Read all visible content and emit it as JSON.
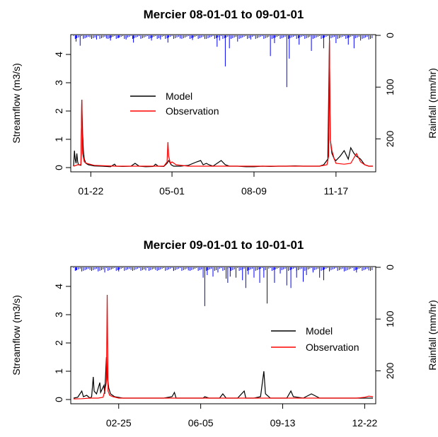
{
  "chart_data": [
    {
      "type": "line",
      "title": "Mercier 08-01-01 to 09-01-01",
      "ylabel": "Streamflow (m3/s)",
      "ylabel_right": "Rainfall (mm/hr)",
      "xlabel": "",
      "ylim": [
        0,
        4.5
      ],
      "ylim_right": [
        0,
        250
      ],
      "y_ticks": [
        0,
        1,
        2,
        3,
        4
      ],
      "y_right_ticks": [
        0,
        100,
        200
      ],
      "x_tick_labels": [
        "01-22",
        "05-01",
        "08-09",
        "11-17"
      ],
      "x_tick_days": [
        21,
        120,
        220,
        320
      ],
      "legend": {
        "position": "center",
        "entries": [
          "Model",
          "Observation"
        ]
      },
      "colors": {
        "model": "#000000",
        "observation": "#ff0000",
        "rainfall": "#0000ff"
      },
      "series": [
        {
          "name": "Model",
          "points": [
            [
              0,
              0.05
            ],
            [
              1,
              0.6
            ],
            [
              2,
              0.3
            ],
            [
              3,
              0.15
            ],
            [
              4,
              0.5
            ],
            [
              5,
              0.2
            ],
            [
              6,
              0.1
            ],
            [
              9,
              0.08
            ],
            [
              10,
              2.4
            ],
            [
              11,
              1.2
            ],
            [
              12,
              0.6
            ],
            [
              13,
              0.3
            ],
            [
              15,
              0.15
            ],
            [
              18,
              0.1
            ],
            [
              25,
              0.06
            ],
            [
              35,
              0.05
            ],
            [
              45,
              0.03
            ],
            [
              50,
              0.12
            ],
            [
              52,
              0.05
            ],
            [
              60,
              0.04
            ],
            [
              70,
              0.05
            ],
            [
              75,
              0.15
            ],
            [
              80,
              0.05
            ],
            [
              88,
              0.03
            ],
            [
              97,
              0.04
            ],
            [
              100,
              0.12
            ],
            [
              103,
              0.05
            ],
            [
              110,
              0.04
            ],
            [
              114,
              0.15
            ],
            [
              116,
              0.25
            ],
            [
              117,
              0.2
            ],
            [
              119,
              0.1
            ],
            [
              122,
              0.05
            ],
            [
              130,
              0.05
            ],
            [
              140,
              0.08
            ],
            [
              150,
              0.2
            ],
            [
              155,
              0.25
            ],
            [
              158,
              0.1
            ],
            [
              162,
              0.15
            ],
            [
              165,
              0.1
            ],
            [
              170,
              0.05
            ],
            [
              180,
              0.25
            ],
            [
              185,
              0.1
            ],
            [
              190,
              0.05
            ],
            [
              200,
              0.05
            ],
            [
              210,
              0.03
            ],
            [
              220,
              0.03
            ],
            [
              230,
              0.05
            ],
            [
              240,
              0.04
            ],
            [
              250,
              0.05
            ],
            [
              260,
              0.05
            ],
            [
              270,
              0.06
            ],
            [
              280,
              0.05
            ],
            [
              300,
              0.05
            ],
            [
              305,
              0.1
            ],
            [
              310,
              0.3
            ],
            [
              312,
              4.5
            ],
            [
              313,
              1.0
            ],
            [
              315,
              0.5
            ],
            [
              318,
              0.3
            ],
            [
              320,
              0.25
            ],
            [
              325,
              0.4
            ],
            [
              330,
              0.6
            ],
            [
              335,
              0.3
            ],
            [
              338,
              0.7
            ],
            [
              342,
              0.5
            ],
            [
              345,
              0.4
            ],
            [
              350,
              0.3
            ],
            [
              355,
              0.1
            ],
            [
              360,
              0.05
            ],
            [
              365,
              0.05
            ]
          ]
        },
        {
          "name": "Observation",
          "points": [
            [
              0,
              0.05
            ],
            [
              5,
              0.1
            ],
            [
              9,
              0.1
            ],
            [
              10,
              2.4
            ],
            [
              11,
              0.5
            ],
            [
              13,
              0.2
            ],
            [
              16,
              0.15
            ],
            [
              25,
              0.08
            ],
            [
              50,
              0.05
            ],
            [
              80,
              0.05
            ],
            [
              110,
              0.05
            ],
            [
              114,
              0.2
            ],
            [
              115,
              0.9
            ],
            [
              116,
              0.4
            ],
            [
              118,
              0.15
            ],
            [
              120,
              0.2
            ],
            [
              125,
              0.1
            ],
            [
              140,
              0.05
            ],
            [
              170,
              0.05
            ],
            [
              200,
              0.05
            ],
            [
              250,
              0.05
            ],
            [
              300,
              0.05
            ],
            [
              309,
              0.1
            ],
            [
              311,
              0.4
            ],
            [
              312,
              4.5
            ],
            [
              313,
              1.0
            ],
            [
              315,
              0.6
            ],
            [
              318,
              0.3
            ],
            [
              320,
              0.15
            ],
            [
              330,
              0.12
            ],
            [
              338,
              0.15
            ],
            [
              345,
              0.5
            ],
            [
              350,
              0.2
            ],
            [
              355,
              0.1
            ],
            [
              360,
              0.05
            ],
            [
              365,
              0.05
            ]
          ]
        },
        {
          "name": "Rainfall",
          "bars": [
            [
              3,
              12
            ],
            [
              8,
              20
            ],
            [
              12,
              5
            ],
            [
              20,
              4
            ],
            [
              28,
              8
            ],
            [
              40,
              6
            ],
            [
              45,
              10
            ],
            [
              55,
              5
            ],
            [
              64,
              8
            ],
            [
              73,
              14
            ],
            [
              82,
              5
            ],
            [
              95,
              10
            ],
            [
              106,
              8
            ],
            [
              115,
              14
            ],
            [
              130,
              6
            ],
            [
              145,
              9
            ],
            [
              160,
              7
            ],
            [
              175,
              22
            ],
            [
              178,
              10
            ],
            [
              185,
              60
            ],
            [
              190,
              25
            ],
            [
              200,
              12
            ],
            [
              216,
              8
            ],
            [
              240,
              40
            ],
            [
              245,
              15
            ],
            [
              260,
              100
            ],
            [
              263,
              45
            ],
            [
              275,
              18
            ],
            [
              290,
              30
            ],
            [
              305,
              25
            ],
            [
              312,
              60
            ],
            [
              320,
              15
            ],
            [
              335,
              18
            ],
            [
              342,
              25
            ],
            [
              350,
              10
            ],
            [
              360,
              8
            ]
          ]
        }
      ]
    },
    {
      "type": "line",
      "title": "Mercier 09-01-01 to 10-01-01",
      "ylabel": "Streamflow (m3/s)",
      "ylabel_right": "Rainfall (mm/hr)",
      "xlabel": "",
      "ylim": [
        0,
        4.5
      ],
      "ylim_right": [
        0,
        250
      ],
      "y_ticks": [
        0,
        1,
        2,
        3,
        4
      ],
      "y_right_ticks": [
        0,
        100,
        200
      ],
      "x_tick_labels": [
        "02-25",
        "06-05",
        "09-13",
        "12-22"
      ],
      "x_tick_days": [
        55,
        155,
        255,
        355
      ],
      "legend": {
        "position": "right",
        "entries": [
          "Model",
          "Observation"
        ]
      },
      "colors": {
        "model": "#000000",
        "observation": "#ff0000",
        "rainfall": "#0000ff"
      },
      "series": [
        {
          "name": "Model",
          "points": [
            [
              0,
              0.05
            ],
            [
              5,
              0.08
            ],
            [
              10,
              0.3
            ],
            [
              12,
              0.1
            ],
            [
              16,
              0.15
            ],
            [
              20,
              0.05
            ],
            [
              22,
              0.1
            ],
            [
              24,
              0.8
            ],
            [
              25,
              0.3
            ],
            [
              28,
              0.2
            ],
            [
              32,
              0.6
            ],
            [
              33,
              0.25
            ],
            [
              37,
              0.5
            ],
            [
              38,
              0.2
            ],
            [
              40,
              1.5
            ],
            [
              41,
              0.8
            ],
            [
              43,
              0.4
            ],
            [
              45,
              0.2
            ],
            [
              50,
              0.1
            ],
            [
              60,
              0.05
            ],
            [
              80,
              0.05
            ],
            [
              110,
              0.05
            ],
            [
              120,
              0.1
            ],
            [
              123,
              0.25
            ],
            [
              125,
              0.05
            ],
            [
              130,
              0.05
            ],
            [
              140,
              0.05
            ],
            [
              150,
              0.05
            ],
            [
              158,
              0.05
            ],
            [
              160,
              0.1
            ],
            [
              165,
              0.05
            ],
            [
              170,
              0.05
            ],
            [
              178,
              0.05
            ],
            [
              182,
              0.2
            ],
            [
              186,
              0.05
            ],
            [
              200,
              0.05
            ],
            [
              208,
              0.3
            ],
            [
              210,
              0.05
            ],
            [
              220,
              0.05
            ],
            [
              228,
              0.1
            ],
            [
              232,
              1.0
            ],
            [
              234,
              0.2
            ],
            [
              240,
              0.05
            ],
            [
              250,
              0.05
            ],
            [
              260,
              0.05
            ],
            [
              265,
              0.3
            ],
            [
              268,
              0.1
            ],
            [
              280,
              0.05
            ],
            [
              290,
              0.2
            ],
            [
              300,
              0.05
            ],
            [
              310,
              0.05
            ],
            [
              320,
              0.05
            ],
            [
              330,
              0.05
            ],
            [
              340,
              0.05
            ],
            [
              350,
              0.05
            ],
            [
              360,
              0.05
            ],
            [
              365,
              0.05
            ]
          ]
        },
        {
          "name": "Observation",
          "points": [
            [
              0,
              0.02
            ],
            [
              10,
              0.03
            ],
            [
              20,
              0.05
            ],
            [
              30,
              0.05
            ],
            [
              36,
              0.08
            ],
            [
              38,
              0.3
            ],
            [
              40,
              0.6
            ],
            [
              41,
              3.7
            ],
            [
              42,
              0.3
            ],
            [
              44,
              0.15
            ],
            [
              48,
              0.1
            ],
            [
              55,
              0.05
            ],
            [
              80,
              0.05
            ],
            [
              120,
              0.05
            ],
            [
              160,
              0.05
            ],
            [
              200,
              0.05
            ],
            [
              240,
              0.05
            ],
            [
              280,
              0.05
            ],
            [
              320,
              0.05
            ],
            [
              345,
              0.05
            ],
            [
              355,
              0.08
            ],
            [
              360,
              0.12
            ],
            [
              365,
              0.1
            ]
          ]
        },
        {
          "name": "Rainfall",
          "bars": [
            [
              3,
              6
            ],
            [
              10,
              8
            ],
            [
              20,
              5
            ],
            [
              30,
              8
            ],
            [
              38,
              10
            ],
            [
              55,
              8
            ],
            [
              70,
              5
            ],
            [
              88,
              6
            ],
            [
              100,
              5
            ],
            [
              122,
              7
            ],
            [
              140,
              6
            ],
            [
              158,
              20
            ],
            [
              160,
              75
            ],
            [
              163,
              15
            ],
            [
              170,
              18
            ],
            [
              176,
              10
            ],
            [
              186,
              22
            ],
            [
              188,
              30
            ],
            [
              191,
              18
            ],
            [
              198,
              20
            ],
            [
              206,
              25
            ],
            [
              210,
              40
            ],
            [
              213,
              14
            ],
            [
              220,
              20
            ],
            [
              227,
              30
            ],
            [
              232,
              20
            ],
            [
              236,
              70
            ],
            [
              245,
              30
            ],
            [
              252,
              12
            ],
            [
              260,
              35
            ],
            [
              265,
              40
            ],
            [
              272,
              20
            ],
            [
              280,
              28
            ],
            [
              284,
              15
            ],
            [
              292,
              10
            ],
            [
              300,
              20
            ],
            [
              305,
              25
            ],
            [
              312,
              8
            ],
            [
              330,
              8
            ],
            [
              345,
              10
            ],
            [
              360,
              6
            ]
          ]
        }
      ]
    }
  ]
}
